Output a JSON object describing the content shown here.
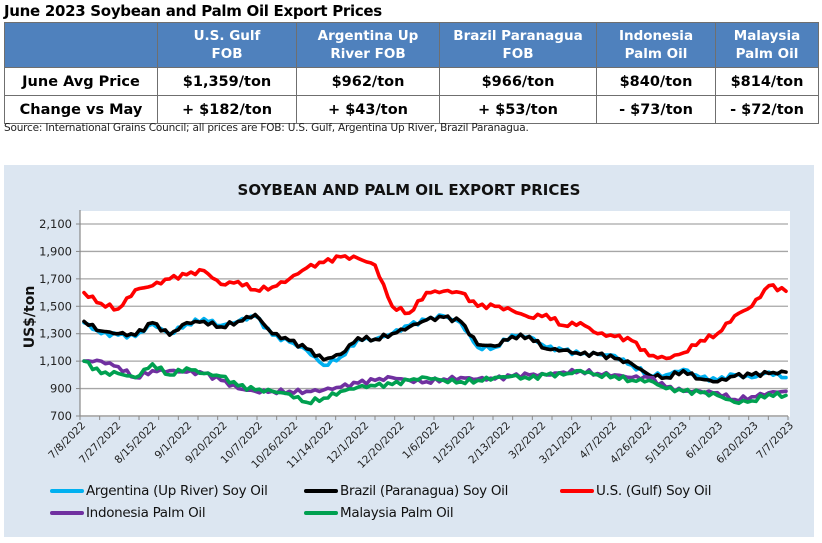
{
  "table": {
    "title": "June 2023 Soybean and Palm Oil Export Prices",
    "columns": [
      "",
      "U.S. Gulf FOB",
      "Argentina Up River FOB",
      "Brazil Paranagua FOB",
      "Indonesia Palm Oil",
      "Malaysia Palm Oil"
    ],
    "column_lines": [
      [
        "",
        ""
      ],
      [
        "U.S. Gulf",
        "FOB"
      ],
      [
        "Argentina Up",
        "River FOB"
      ],
      [
        "Brazil Paranagua",
        "FOB"
      ],
      [
        "Indonesia",
        "Palm Oil"
      ],
      [
        "Malaysia",
        "Palm Oil"
      ]
    ],
    "rows": [
      {
        "label": "June Avg Price",
        "values": [
          "$1,359/ton",
          "$962/ton",
          "$966/ton",
          "$840/ton",
          "$814/ton"
        ]
      },
      {
        "label": "Change vs May",
        "values": [
          "+ $182/ton",
          "+ $43/ton",
          "+ $53/ton",
          "- $73/ton",
          "- $72/ton"
        ]
      }
    ],
    "source": "Source: International Grains Council; all prices are FOB: U.S. Gulf, Argentina Up River, Brazil Paranagua."
  },
  "chart_data": {
    "type": "line",
    "title": "SOYBEAN AND PALM OIL EXPORT PRICES",
    "xlabel": "",
    "ylabel": "US$/ton",
    "ylim": [
      700,
      2100
    ],
    "yticks": [
      700,
      900,
      1100,
      1300,
      1500,
      1700,
      1900,
      2100
    ],
    "ytick_labels": [
      "700",
      "900",
      "1,100",
      "1,300",
      "1,500",
      "1,700",
      "1,900",
      "2,100"
    ],
    "xtick_labels": [
      "7/8/2022",
      "7/27/2022",
      "8/15/2022",
      "9/1/2022",
      "9/20/2022",
      "10/7/2022",
      "10/26/2022",
      "11/14/2022",
      "12/1/2022",
      "12/20/2022",
      "1/6/2022",
      "1/25/2022",
      "2/13/2022",
      "3/2/2022",
      "3/21/2022",
      "4/7/2022",
      "4/26/2022",
      "5/15/2023",
      "6/1/2023",
      "6/20/2023",
      "7/7/2023"
    ],
    "grid": true,
    "legend_position": "bottom",
    "series": [
      {
        "name": "Argentina (Up River) Soy Oil",
        "color": "#00b0f0",
        "values": [
          1380,
          1300,
          1290,
          1280,
          1370,
          1300,
          1370,
          1410,
          1360,
          1390,
          1430,
          1290,
          1240,
          1180,
          1070,
          1130,
          1260,
          1260,
          1300,
          1360,
          1400,
          1430,
          1380,
          1200,
          1200,
          1290,
          1280,
          1200,
          1180,
          1150,
          1150,
          1140,
          1070,
          1000,
          1000,
          1040,
          980,
          960,
          1000,
          980,
          1020,
          980
        ]
      },
      {
        "name": "Brazil (Paranagua) Soy Oil",
        "color": "#000000",
        "values": [
          1390,
          1320,
          1300,
          1290,
          1380,
          1290,
          1380,
          1390,
          1350,
          1390,
          1440,
          1300,
          1250,
          1190,
          1110,
          1150,
          1270,
          1260,
          1300,
          1350,
          1400,
          1420,
          1390,
          1220,
          1210,
          1280,
          1280,
          1190,
          1180,
          1150,
          1150,
          1120,
          1080,
          1000,
          980,
          1030,
          970,
          950,
          990,
          1000,
          1010,
          1020
        ]
      },
      {
        "name": "U.S. (Gulf) Soy Oil",
        "color": "#ff0000",
        "values": [
          1600,
          1520,
          1480,
          1620,
          1650,
          1700,
          1730,
          1760,
          1660,
          1680,
          1620,
          1640,
          1700,
          1780,
          1820,
          1860,
          1850,
          1800,
          1500,
          1450,
          1600,
          1610,
          1600,
          1500,
          1500,
          1470,
          1420,
          1440,
          1360,
          1380,
          1300,
          1280,
          1250,
          1140,
          1120,
          1160,
          1250,
          1300,
          1430,
          1500,
          1650,
          1610
        ]
      },
      {
        "name": "Indonesia Palm Oil",
        "color": "#7030a0",
        "values": [
          1100,
          1100,
          1060,
          980,
          1030,
          1030,
          1020,
          1010,
          960,
          900,
          880,
          880,
          880,
          880,
          890,
          910,
          940,
          960,
          980,
          960,
          950,
          970,
          980,
          970,
          970,
          990,
          1000,
          1000,
          1020,
          1030,
          1010,
          1000,
          980,
          980,
          910,
          880,
          880,
          870,
          820,
          840,
          870,
          880
        ]
      },
      {
        "name": "Malaysia Palm Oil",
        "color": "#00a050",
        "values": [
          1100,
          1010,
          1010,
          980,
          1080,
          1000,
          1050,
          1010,
          990,
          920,
          890,
          880,
          860,
          800,
          830,
          880,
          910,
          920,
          930,
          960,
          980,
          960,
          950,
          960,
          980,
          990,
          970,
          1000,
          1000,
          1030,
          1000,
          990,
          960,
          960,
          900,
          880,
          870,
          850,
          800,
          810,
          860,
          850
        ]
      }
    ]
  },
  "legend": [
    {
      "label": "Argentina (Up River) Soy Oil",
      "color": "#00b0f0"
    },
    {
      "label": "Brazil (Paranagua) Soy Oil",
      "color": "#000000"
    },
    {
      "label": "U.S. (Gulf) Soy Oil",
      "color": "#ff0000"
    },
    {
      "label": "Indonesia Palm Oil",
      "color": "#7030a0"
    },
    {
      "label": "Malaysia Palm Oil",
      "color": "#00a050"
    }
  ]
}
